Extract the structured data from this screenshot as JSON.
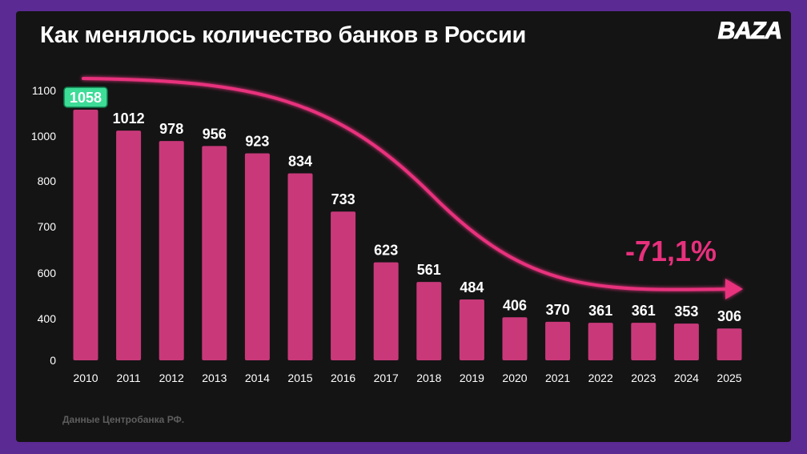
{
  "header": {
    "title": "Как менялось количество банков в России",
    "logo": "BAZA"
  },
  "footer": {
    "source": "Данные Центробанка РФ."
  },
  "colors": {
    "background": "#5b2a93",
    "panel": "#141414",
    "bar": "#c9397a",
    "trend_arrow": "#e8307d",
    "highlight_label_bg": "#3ddc97",
    "text": "#ffffff"
  },
  "chart_data": {
    "type": "bar",
    "title": "Как менялось количество банков в России",
    "categories": [
      "2010",
      "2011",
      "2012",
      "2013",
      "2014",
      "2015",
      "2016",
      "2017",
      "2018",
      "2019",
      "2020",
      "2021",
      "2022",
      "2023",
      "2024",
      "2025"
    ],
    "values": [
      1058,
      1012,
      978,
      956,
      923,
      834,
      733,
      623,
      561,
      484,
      406,
      370,
      361,
      361,
      353,
      306
    ],
    "y_tick_labels": [
      "0",
      "400",
      "600",
      "700",
      "800",
      "1000",
      "1100"
    ],
    "highlighted_category": "2010",
    "annotation": "-71,1%",
    "grid": false,
    "legend": "none"
  }
}
